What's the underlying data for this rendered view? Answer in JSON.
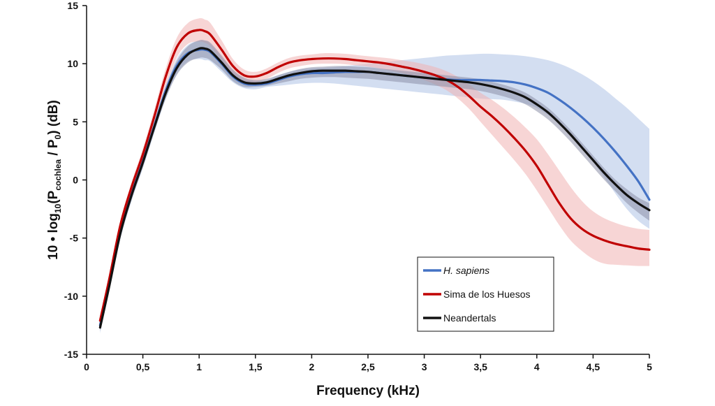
{
  "chart_data": {
    "type": "line",
    "xlabel": "Frequency (kHz)",
    "ylabel": {
      "prefix": "10 • log",
      "sub_log": "10",
      "open": "(P",
      "sub_num": "cochlea",
      "mid": " / P",
      "sub_den": "0",
      "close": ")  (dB)"
    },
    "xlim": [
      0,
      5
    ],
    "ylim": [
      -15,
      15
    ],
    "x_ticks": [
      0,
      0.5,
      1,
      1.5,
      2,
      2.5,
      3,
      3.5,
      4,
      4.5,
      5
    ],
    "x_tick_labels": [
      "0",
      "0,5",
      "1",
      "1,5",
      "2",
      "2,5",
      "3",
      "3,5",
      "4",
      "4,5",
      "5"
    ],
    "y_ticks": [
      -15,
      -10,
      -5,
      0,
      5,
      10,
      15
    ],
    "y_tick_labels": [
      "-15",
      "-10",
      "-5",
      "0",
      "5",
      "10",
      "15"
    ],
    "grid": false,
    "legend_position": "bottom-right",
    "x": [
      0.12,
      0.2,
      0.3,
      0.4,
      0.5,
      0.6,
      0.7,
      0.8,
      0.9,
      1.0,
      1.05,
      1.1,
      1.2,
      1.3,
      1.4,
      1.5,
      1.6,
      1.7,
      1.8,
      1.9,
      2.0,
      2.1,
      2.2,
      2.3,
      2.4,
      2.5,
      2.6,
      2.7,
      2.8,
      2.9,
      3.0,
      3.1,
      3.2,
      3.3,
      3.4,
      3.5,
      3.6,
      3.7,
      3.8,
      3.9,
      4.0,
      4.1,
      4.2,
      4.3,
      4.4,
      4.5,
      4.6,
      4.7,
      4.8,
      4.9,
      5.0
    ],
    "series": [
      {
        "name": "H. sapiens",
        "name_italic": true,
        "color": "#4472c4",
        "band_color": "#aec3e6",
        "values": [
          -12.5,
          -9.0,
          -4.5,
          -1.2,
          1.6,
          4.6,
          7.6,
          9.8,
          10.9,
          11.2,
          11.2,
          11.0,
          10.0,
          8.9,
          8.3,
          8.2,
          8.3,
          8.6,
          8.9,
          9.1,
          9.2,
          9.2,
          9.25,
          9.3,
          9.3,
          9.3,
          9.2,
          9.1,
          9.0,
          8.9,
          8.8,
          8.7,
          8.65,
          8.6,
          8.6,
          8.6,
          8.55,
          8.5,
          8.4,
          8.2,
          7.9,
          7.5,
          6.9,
          6.2,
          5.4,
          4.5,
          3.5,
          2.4,
          1.2,
          -0.1,
          -1.7
        ],
        "band_upper": [
          -12.0,
          -8.5,
          -4.0,
          -0.7,
          2.1,
          5.1,
          8.1,
          10.4,
          11.6,
          12.0,
          12.0,
          11.7,
          10.6,
          9.4,
          8.7,
          8.5,
          8.6,
          9.0,
          9.3,
          9.5,
          9.6,
          9.65,
          9.7,
          9.8,
          9.9,
          10.0,
          10.1,
          10.2,
          10.3,
          10.4,
          10.5,
          10.6,
          10.7,
          10.75,
          10.8,
          10.85,
          10.85,
          10.8,
          10.75,
          10.65,
          10.5,
          10.3,
          10.0,
          9.6,
          9.1,
          8.5,
          7.8,
          7.0,
          6.2,
          5.3,
          4.4
        ],
        "band_lower": [
          -13.2,
          -9.6,
          -5.1,
          -1.8,
          1.0,
          4.0,
          6.9,
          9.1,
          10.2,
          10.4,
          10.3,
          10.2,
          9.3,
          8.4,
          7.9,
          7.8,
          8.0,
          8.1,
          8.2,
          8.3,
          8.35,
          8.35,
          8.3,
          8.2,
          8.1,
          8.0,
          7.9,
          7.8,
          7.7,
          7.6,
          7.5,
          7.4,
          7.3,
          7.2,
          7.1,
          7.0,
          6.95,
          6.9,
          6.75,
          6.55,
          6.2,
          5.6,
          4.9,
          4.0,
          2.9,
          1.6,
          0.2,
          -1.2,
          -2.5,
          -3.5,
          -4.2
        ]
      },
      {
        "name": "Sima de los Huesos",
        "name_italic": false,
        "color": "#c00000",
        "band_color": "#f0b3b3",
        "values": [
          -12.1,
          -8.6,
          -3.9,
          -0.6,
          2.2,
          5.4,
          8.8,
          11.4,
          12.6,
          12.9,
          12.8,
          12.5,
          11.2,
          9.8,
          9.0,
          8.9,
          9.2,
          9.7,
          10.1,
          10.3,
          10.4,
          10.45,
          10.45,
          10.4,
          10.3,
          10.2,
          10.1,
          9.95,
          9.75,
          9.55,
          9.3,
          9.0,
          8.6,
          8.0,
          7.2,
          6.3,
          5.5,
          4.6,
          3.6,
          2.5,
          1.2,
          -0.4,
          -2.0,
          -3.3,
          -4.2,
          -4.8,
          -5.2,
          -5.5,
          -5.7,
          -5.9,
          -6.0
        ],
        "band_upper": [
          -11.8,
          -8.2,
          -3.5,
          -0.2,
          2.7,
          6.0,
          9.5,
          12.2,
          13.5,
          13.9,
          13.8,
          13.5,
          12.0,
          10.4,
          9.5,
          9.3,
          9.6,
          10.1,
          10.5,
          10.7,
          10.8,
          10.9,
          10.9,
          10.85,
          10.75,
          10.65,
          10.55,
          10.45,
          10.3,
          10.15,
          9.95,
          9.7,
          9.35,
          8.85,
          8.2,
          7.5,
          6.9,
          6.2,
          5.4,
          4.5,
          3.5,
          2.2,
          0.8,
          -0.6,
          -1.8,
          -2.7,
          -3.3,
          -3.7,
          -4.0,
          -4.2,
          -4.3
        ],
        "band_lower": [
          -12.6,
          -9.1,
          -4.4,
          -1.1,
          1.6,
          4.7,
          8.0,
          10.5,
          11.7,
          11.9,
          11.8,
          11.5,
          10.3,
          9.1,
          8.5,
          8.4,
          8.7,
          9.2,
          9.6,
          9.8,
          9.95,
          10.0,
          10.0,
          9.95,
          9.85,
          9.75,
          9.6,
          9.4,
          9.2,
          8.95,
          8.6,
          8.2,
          7.7,
          7.0,
          6.1,
          5.0,
          3.9,
          2.8,
          1.7,
          0.5,
          -0.9,
          -2.4,
          -3.9,
          -5.2,
          -6.1,
          -6.8,
          -7.2,
          -7.3,
          -7.35,
          -7.4,
          -7.4
        ]
      },
      {
        "name": "Neandertals",
        "name_italic": false,
        "color": "#111111",
        "band_color": "#8c90a8",
        "values": [
          -12.7,
          -9.2,
          -4.6,
          -1.3,
          1.5,
          4.5,
          7.4,
          9.6,
          10.8,
          11.3,
          11.3,
          11.1,
          10.1,
          9.0,
          8.4,
          8.3,
          8.4,
          8.7,
          9.0,
          9.2,
          9.35,
          9.4,
          9.4,
          9.4,
          9.35,
          9.3,
          9.2,
          9.1,
          9.0,
          8.9,
          8.8,
          8.7,
          8.6,
          8.5,
          8.4,
          8.25,
          8.05,
          7.8,
          7.5,
          7.1,
          6.5,
          5.8,
          4.9,
          3.9,
          2.8,
          1.7,
          0.6,
          -0.4,
          -1.3,
          -2.0,
          -2.6
        ],
        "band_upper": [
          -12.4,
          -8.8,
          -4.2,
          -0.9,
          1.9,
          4.9,
          7.9,
          10.2,
          11.5,
          12.0,
          12.0,
          11.8,
          10.7,
          9.5,
          8.8,
          8.6,
          8.7,
          9.0,
          9.3,
          9.55,
          9.7,
          9.75,
          9.8,
          9.8,
          9.75,
          9.7,
          9.6,
          9.5,
          9.4,
          9.3,
          9.2,
          9.1,
          9.0,
          8.9,
          8.8,
          8.65,
          8.45,
          8.2,
          7.9,
          7.5,
          6.9,
          6.2,
          5.3,
          4.3,
          3.2,
          2.1,
          1.0,
          0.0,
          -0.8,
          -1.5,
          -2.0
        ],
        "band_lower": [
          -13.0,
          -9.6,
          -5.0,
          -1.7,
          1.1,
          4.1,
          6.9,
          9.0,
          10.1,
          10.5,
          10.5,
          10.3,
          9.5,
          8.5,
          8.0,
          8.0,
          8.1,
          8.3,
          8.5,
          8.7,
          8.8,
          8.85,
          8.85,
          8.8,
          8.75,
          8.7,
          8.6,
          8.5,
          8.4,
          8.3,
          8.2,
          8.1,
          8.0,
          7.9,
          7.8,
          7.65,
          7.45,
          7.2,
          6.9,
          6.5,
          5.9,
          5.2,
          4.3,
          3.3,
          2.2,
          1.1,
          0.0,
          -1.0,
          -2.0,
          -2.8,
          -3.5
        ]
      }
    ]
  }
}
